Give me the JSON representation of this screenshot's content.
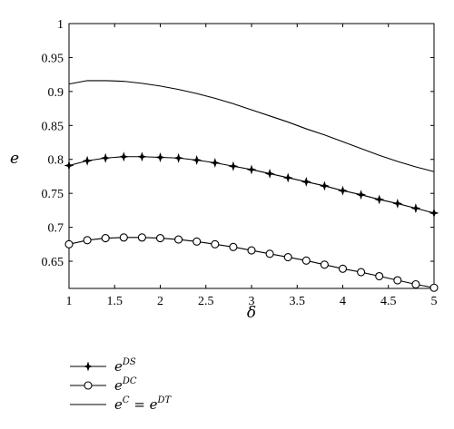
{
  "chart_data": {
    "type": "line",
    "xlabel": "δ",
    "ylabel": "e",
    "xlim": [
      1,
      5
    ],
    "ylim": [
      0.61,
      1.0
    ],
    "x_ticks": [
      "1",
      "1.5",
      "2",
      "2.5",
      "3",
      "3.5",
      "4",
      "4.5",
      "5"
    ],
    "y_ticks": [
      "0.65",
      "0.7",
      "0.75",
      "0.8",
      "0.85",
      "0.9",
      "0.95",
      "1"
    ],
    "grid": false,
    "legend_position": "below-left",
    "x": [
      1.0,
      1.2,
      1.4,
      1.6,
      1.8,
      2.0,
      2.2,
      2.4,
      2.6,
      2.8,
      3.0,
      3.2,
      3.4,
      3.6,
      3.8,
      4.0,
      4.2,
      4.4,
      4.6,
      4.8,
      5.0
    ],
    "series": [
      {
        "name_base": "e",
        "name_sup": "DS",
        "marker": "star",
        "values": [
          0.791,
          0.798,
          0.802,
          0.804,
          0.804,
          0.803,
          0.802,
          0.799,
          0.795,
          0.79,
          0.785,
          0.779,
          0.773,
          0.767,
          0.761,
          0.754,
          0.748,
          0.741,
          0.735,
          0.728,
          0.721
        ]
      },
      {
        "name_base": "e",
        "name_sup": "DC",
        "marker": "circle",
        "values": [
          0.675,
          0.681,
          0.684,
          0.685,
          0.685,
          0.684,
          0.682,
          0.679,
          0.675,
          0.671,
          0.666,
          0.661,
          0.656,
          0.651,
          0.645,
          0.639,
          0.634,
          0.628,
          0.622,
          0.616,
          0.611
        ]
      },
      {
        "name_base": "e",
        "name_sup": "C",
        "name_mid": " = e",
        "name_sup2": "DT",
        "marker": "none",
        "values": [
          0.911,
          0.916,
          0.916,
          0.915,
          0.912,
          0.908,
          0.903,
          0.897,
          0.89,
          0.882,
          0.873,
          0.864,
          0.855,
          0.845,
          0.836,
          0.826,
          0.816,
          0.806,
          0.797,
          0.789,
          0.782
        ]
      }
    ],
    "colors": {
      "line": "#000000",
      "axis": "#000000"
    }
  }
}
